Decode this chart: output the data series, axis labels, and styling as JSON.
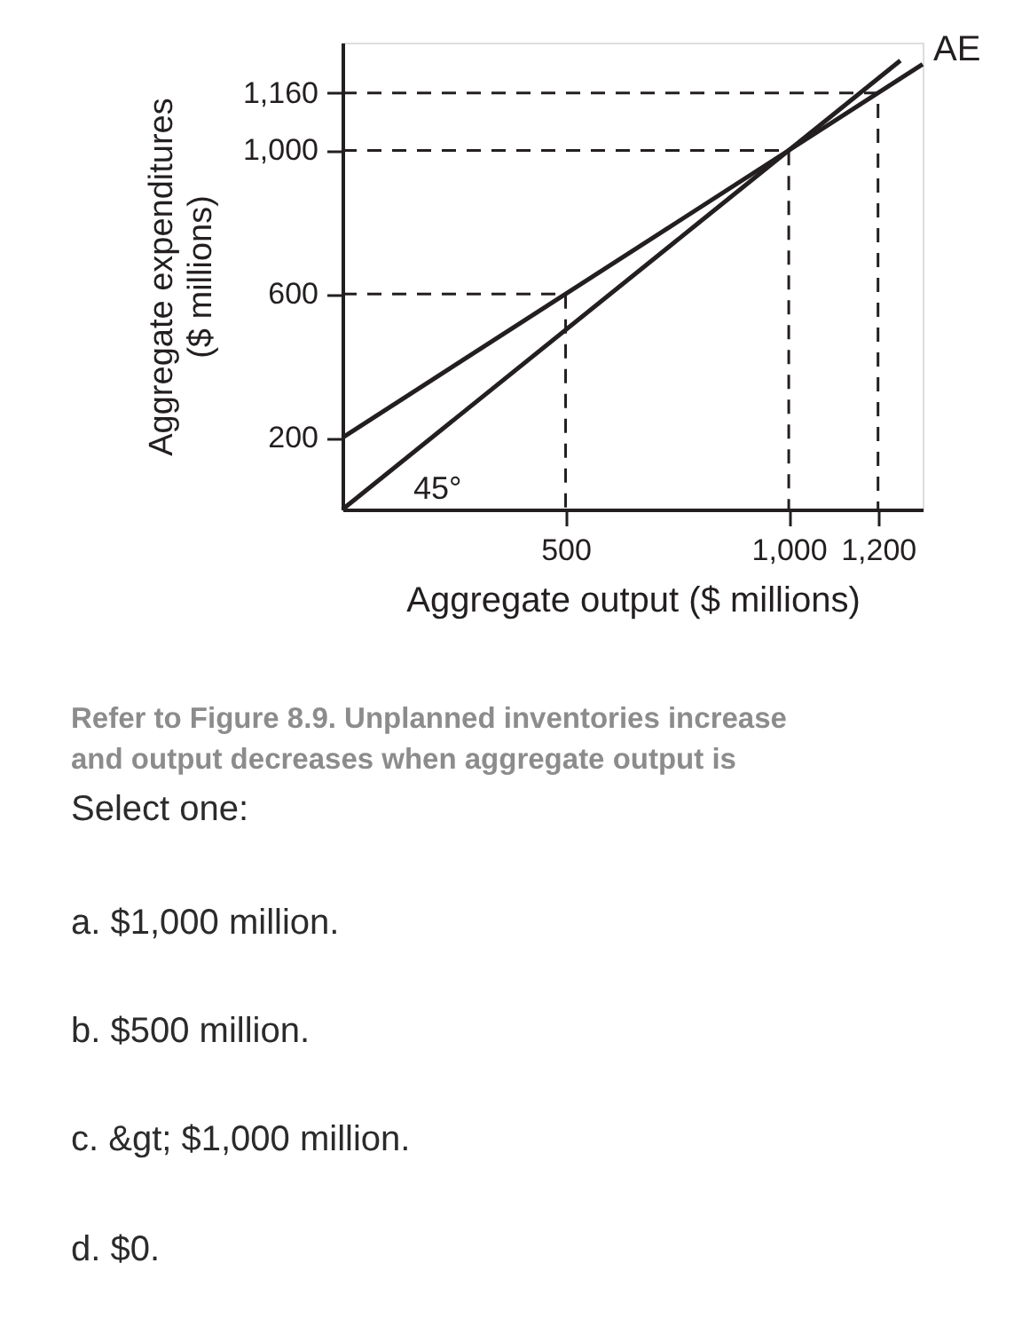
{
  "chart_data": {
    "type": "line",
    "xlabel": "Aggregate output ($ millions)",
    "ylabel": "Aggregate expenditures\n($ millions)",
    "xlim": [
      0,
      1300
    ],
    "ylim": [
      0,
      1300
    ],
    "xticks": [
      500,
      {
        "value": 1000,
        "label": "1,000"
      },
      {
        "value": 1200,
        "label": "1,200"
      }
    ],
    "yticks": [
      200,
      600,
      {
        "value": 1000,
        "label": "1,000"
      },
      {
        "value": 1160,
        "label": "1,160"
      }
    ],
    "grid": false,
    "series": [
      {
        "name": "AE",
        "color": "#231f20",
        "x": [
          0,
          1300
        ],
        "values": [
          200,
          1240
        ]
      },
      {
        "color": "#231f20",
        "x": [
          0,
          1250
        ],
        "values": [
          0,
          1250
        ]
      },
      {
        "color": "#231f20",
        "line_style": "dashed",
        "x": [
          0,
          500,
          500
        ],
        "values": [
          600,
          600,
          0
        ]
      },
      {
        "color": "#231f20",
        "line_style": "dashed",
        "x": [
          0,
          1000,
          1000
        ],
        "values": [
          1000,
          1000,
          0
        ]
      },
      {
        "color": "#231f20",
        "line_style": "dashed",
        "x": [
          0,
          1200,
          1200
        ],
        "values": [
          1160,
          1160,
          0
        ]
      }
    ],
    "annotations": [
      "45°",
      "Refer to Figure 8.9. Unplanned inventories increase\nand output decreases when aggregate output is",
      "Select one:",
      "a. $1,000 million.",
      "b. $500 million.",
      "c. &gt; $1,000 million.",
      "d. $0."
    ]
  }
}
